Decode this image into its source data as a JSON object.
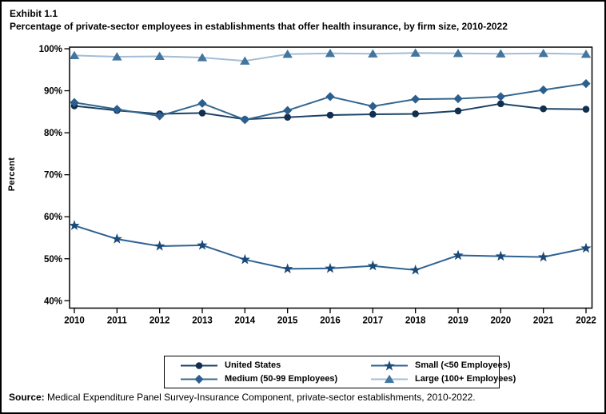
{
  "page": {
    "exhibit_label": "Exhibit 1.1",
    "title": "Percentage of private-sector employees in establishments that offer health insurance, by firm size, 2010-2022",
    "source_prefix": "Source:",
    "source_text": " Medical Expenditure Panel Survey-Insurance Component, private-sector establishments, 2010-2022."
  },
  "chart_data": {
    "type": "line",
    "title": "Percentage of private-sector employees in establishments that offer health insurance, by firm size, 2010-2022",
    "xlabel": "",
    "ylabel": "Percent",
    "ylim": [
      40,
      100
    ],
    "yticks": [
      40,
      50,
      60,
      70,
      80,
      90,
      100
    ],
    "ytick_suffix": "%",
    "grid": false,
    "legend_position": "bottom",
    "legend_order": [
      0,
      2,
      1,
      3
    ],
    "categories": [
      "2010",
      "2011",
      "2012",
      "2013",
      "2014",
      "2015",
      "2016",
      "2017",
      "2018",
      "2019",
      "2020",
      "2021",
      "2022"
    ],
    "series": [
      {
        "name": "United States",
        "marker": "circle",
        "marker_color": "#122f4e",
        "line_color": "#1c4265",
        "values": [
          86.4,
          85.3,
          84.5,
          84.7,
          83.2,
          83.7,
          84.2,
          84.4,
          84.5,
          85.2,
          86.9,
          85.7,
          85.6
        ]
      },
      {
        "name": "Medium (50-99 Employees)",
        "marker": "diamond",
        "marker_color": "#2c5f8e",
        "line_color": "#35688f",
        "values": [
          87.2,
          85.6,
          84.0,
          87.0,
          83.1,
          85.3,
          88.6,
          86.3,
          88.0,
          88.1,
          88.6,
          90.2,
          91.7
        ]
      },
      {
        "name": "Small (<50 Employees)",
        "marker": "star",
        "marker_color": "#1b4a79",
        "line_color": "#2e6293",
        "values": [
          57.9,
          54.7,
          53.0,
          53.2,
          49.8,
          47.6,
          47.7,
          48.3,
          47.3,
          50.8,
          50.6,
          50.4,
          52.5
        ]
      },
      {
        "name": "Large (100+ Employees)",
        "marker": "triangle",
        "marker_color": "#43769f",
        "line_color": "#a3bdd6",
        "values": [
          98.4,
          98.1,
          98.2,
          97.9,
          97.1,
          98.7,
          98.9,
          98.8,
          99.0,
          98.9,
          98.8,
          98.9,
          98.7
        ]
      }
    ]
  }
}
